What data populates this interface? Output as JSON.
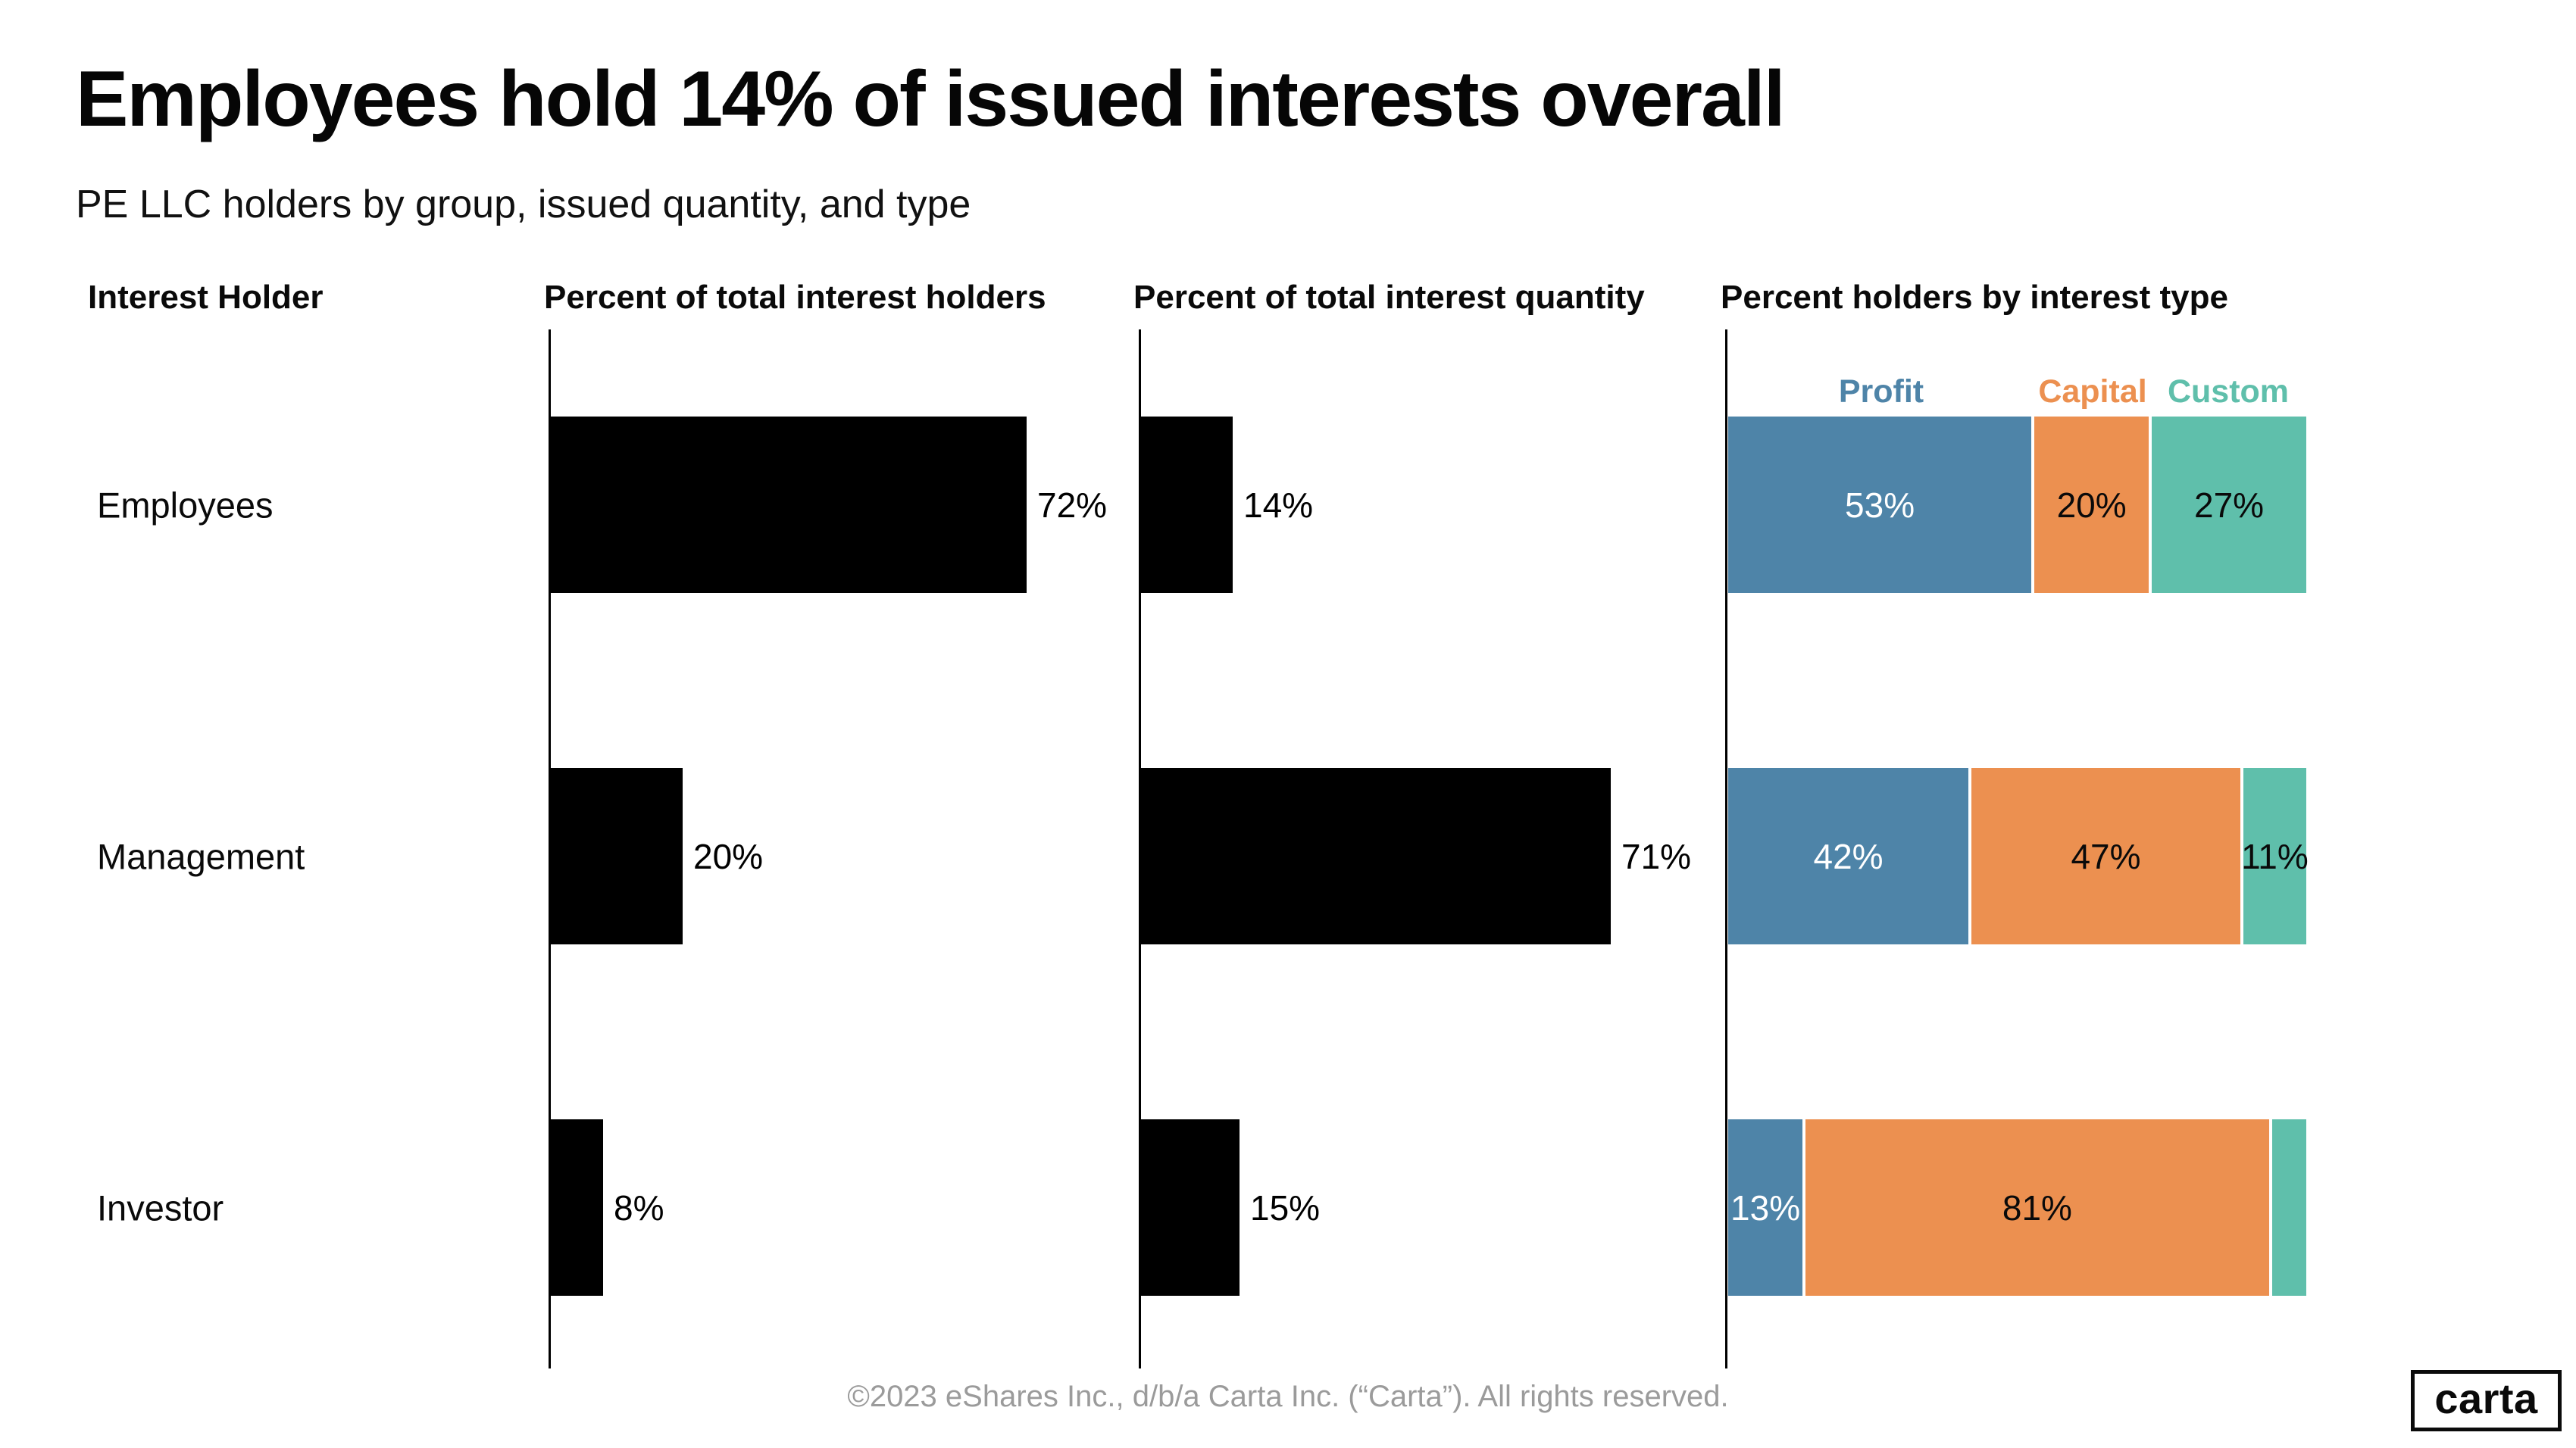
{
  "page": {
    "title": "Employees hold 14% of issued interests overall",
    "subtitle": "PE LLC holders by group, issued quantity, and type",
    "footer": "©2023 eShares Inc., d/b/a Carta Inc. (“Carta”). All rights reserved.",
    "logo": "carta"
  },
  "columns": {
    "holder": "Interest Holder",
    "holders_pct": "Percent of total interest holders",
    "quantity_pct": "Percent of total interest quantity",
    "type_pct": "Percent holders by interest type"
  },
  "colors": {
    "bar": "#000000",
    "profit": "#4e84a8",
    "capital": "#ec9050",
    "custom": "#5fbfab",
    "label_on_profit": "#ffffff",
    "label_on_capital": "#0a0a0a",
    "label_on_custom": "#0a0a0a",
    "footer_gray": "#9b9b9b"
  },
  "legend": [
    {
      "name": "Profit",
      "color_key": "profit"
    },
    {
      "name": "Capital",
      "color_key": "capital"
    },
    {
      "name": "Custom",
      "color_key": "custom"
    }
  ],
  "chart_data": {
    "type": "bar",
    "orientation": "horizontal",
    "categories": [
      "Employees",
      "Management",
      "Investor"
    ],
    "series": [
      {
        "name": "Percent of total interest holders",
        "unit": "%",
        "values": [
          72,
          20,
          8
        ],
        "labels": [
          "72%",
          "20%",
          "8%"
        ],
        "xlim": [
          0,
          100
        ]
      },
      {
        "name": "Percent of total interest quantity",
        "unit": "%",
        "values": [
          14,
          71,
          15
        ],
        "labels": [
          "14%",
          "71%",
          "15%"
        ],
        "xlim": [
          0,
          100
        ]
      },
      {
        "name": "Percent holders by interest type",
        "type": "stacked",
        "unit": "%",
        "stacks": [
          "Profit",
          "Capital",
          "Custom"
        ],
        "values": [
          [
            53,
            20,
            27
          ],
          [
            42,
            47,
            11
          ],
          [
            13,
            81,
            6
          ]
        ],
        "labels": [
          [
            "53%",
            "20%",
            "27%"
          ],
          [
            "42%",
            "47%",
            "11%"
          ],
          [
            "13%",
            "81%",
            ""
          ]
        ],
        "xlim": [
          0,
          100
        ]
      }
    ],
    "title": "Employees hold 14% of issued interests overall",
    "subtitle": "PE LLC holders by group, issued quantity, and type",
    "legend_position": "top-of-stacked-column",
    "grid": false
  }
}
